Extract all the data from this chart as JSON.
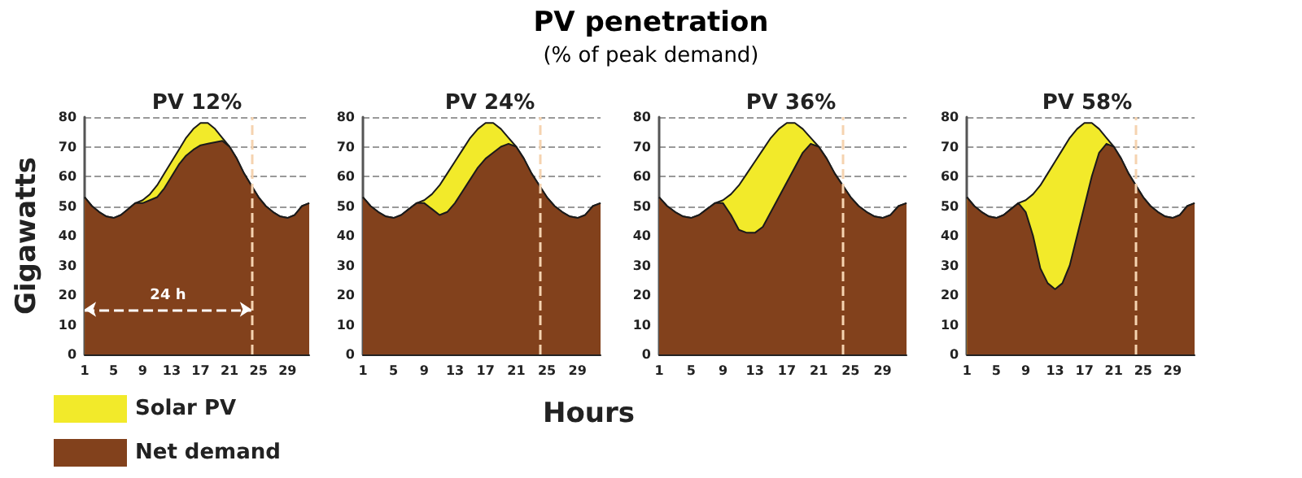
{
  "chart_data": [
    {
      "type": "other",
      "title": "PV penetration",
      "subtitle": "(% of peak demand)"
    },
    {
      "type": "area",
      "title": "PV 12%",
      "ylabel": "Gigawatts",
      "stacked": true,
      "legend": "bottom left",
      "grid": "y",
      "x": [
        1,
        2,
        3,
        4,
        5,
        6,
        7,
        8,
        9,
        10,
        11,
        12,
        13,
        14,
        15,
        16,
        17,
        18,
        19,
        20,
        21,
        22,
        23,
        24,
        25,
        26,
        27,
        28,
        29,
        30,
        31,
        32
      ],
      "xlim": [
        1,
        32
      ],
      "xticks": [
        1,
        5,
        9,
        13,
        17,
        21,
        25,
        29
      ],
      "ylim": [
        0,
        80
      ],
      "yticks": [
        0,
        10,
        20,
        30,
        40,
        50,
        60,
        70,
        80
      ],
      "series": [
        {
          "name": "Net demand",
          "color": "#82411c",
          "values": [
            53,
            50,
            48,
            46.5,
            46,
            47,
            49,
            51,
            51,
            52,
            53,
            56,
            60,
            64,
            67,
            69,
            70.5,
            71,
            71.5,
            72,
            70,
            66,
            61,
            57,
            53,
            50,
            48,
            46.5,
            46,
            47,
            50,
            51
          ]
        },
        {
          "name": "Solar PV",
          "color": "#f2ea2a",
          "values": [
            0,
            0,
            0,
            0,
            0,
            0,
            0,
            0,
            1,
            2,
            4,
            5,
            5,
            5,
            6,
            7,
            7.5,
            7,
            4.5,
            1,
            0,
            0,
            0,
            0,
            0,
            0,
            0,
            0,
            0,
            0,
            0,
            0
          ]
        }
      ],
      "ref_lines": [
        {
          "axis": "x",
          "value": 24,
          "color": "#f5d3b0",
          "line_style": "dashed"
        }
      ],
      "annotations": [
        "24 h"
      ]
    },
    {
      "type": "area",
      "title": "PV 24%",
      "xlabel": "Hours",
      "stacked": true,
      "grid": "y",
      "x": [
        1,
        2,
        3,
        4,
        5,
        6,
        7,
        8,
        9,
        10,
        11,
        12,
        13,
        14,
        15,
        16,
        17,
        18,
        19,
        20,
        21,
        22,
        23,
        24,
        25,
        26,
        27,
        28,
        29,
        30,
        31,
        32
      ],
      "xlim": [
        1,
        32
      ],
      "xticks": [
        1,
        5,
        9,
        13,
        17,
        21,
        25,
        29
      ],
      "ylim": [
        0,
        80
      ],
      "yticks": [
        0,
        10,
        20,
        30,
        40,
        50,
        60,
        70,
        80
      ],
      "series": [
        {
          "color": "#82411c",
          "values": [
            53,
            50,
            48,
            46.5,
            46,
            47,
            49,
            51,
            51,
            49,
            47,
            48,
            51,
            55,
            59,
            63,
            66,
            68,
            70,
            71,
            70,
            66,
            61,
            57,
            53,
            50,
            48,
            46.5,
            46,
            47,
            50,
            51
          ]
        },
        {
          "color": "#f2ea2a",
          "values": [
            0,
            0,
            0,
            0,
            0,
            0,
            0,
            0,
            1,
            5,
            10,
            13,
            14,
            14,
            14,
            13,
            12,
            10,
            6,
            2,
            0,
            0,
            0,
            0,
            0,
            0,
            0,
            0,
            0,
            0,
            0,
            0
          ]
        }
      ],
      "ref_lines": [
        {
          "axis": "x",
          "value": 24,
          "color": "#f5d3b0",
          "line_style": "dashed"
        }
      ]
    },
    {
      "type": "area",
      "title": "PV 36%",
      "stacked": true,
      "grid": "y",
      "x": [
        1,
        2,
        3,
        4,
        5,
        6,
        7,
        8,
        9,
        10,
        11,
        12,
        13,
        14,
        15,
        16,
        17,
        18,
        19,
        20,
        21,
        22,
        23,
        24,
        25,
        26,
        27,
        28,
        29,
        30,
        31,
        32
      ],
      "xlim": [
        1,
        32
      ],
      "xticks": [
        1,
        5,
        9,
        13,
        17,
        21,
        25,
        29
      ],
      "ylim": [
        0,
        80
      ],
      "yticks": [
        0,
        10,
        20,
        30,
        40,
        50,
        60,
        70,
        80
      ],
      "series": [
        {
          "color": "#82411c",
          "values": [
            53,
            50,
            48,
            46.5,
            46,
            47,
            49,
            51,
            51,
            47,
            42,
            41,
            41,
            43,
            48,
            53,
            58,
            63,
            68,
            71,
            70,
            66,
            61,
            57,
            53,
            50,
            48,
            46.5,
            46,
            47,
            50,
            51
          ]
        },
        {
          "color": "#f2ea2a",
          "values": [
            0,
            0,
            0,
            0,
            0,
            0,
            0,
            0,
            1,
            7,
            15,
            20,
            24,
            26,
            25,
            23,
            20,
            15,
            8,
            2,
            0,
            0,
            0,
            0,
            0,
            0,
            0,
            0,
            0,
            0,
            0,
            0
          ]
        }
      ],
      "ref_lines": [
        {
          "axis": "x",
          "value": 24,
          "color": "#f5d3b0",
          "line_style": "dashed"
        }
      ]
    },
    {
      "type": "area",
      "title": "PV 58%",
      "stacked": true,
      "grid": "y",
      "x": [
        1,
        2,
        3,
        4,
        5,
        6,
        7,
        8,
        9,
        10,
        11,
        12,
        13,
        14,
        15,
        16,
        17,
        18,
        19,
        20,
        21,
        22,
        23,
        24,
        25,
        26,
        27,
        28,
        29,
        30,
        31,
        32
      ],
      "xlim": [
        1,
        32
      ],
      "xticks": [
        1,
        5,
        9,
        13,
        17,
        21,
        25,
        29
      ],
      "ylim": [
        0,
        80
      ],
      "yticks": [
        0,
        10,
        20,
        30,
        40,
        50,
        60,
        70,
        80
      ],
      "series": [
        {
          "color": "#82411c",
          "values": [
            53,
            50,
            48,
            46.5,
            46,
            47,
            49,
            51,
            48,
            40,
            29,
            24,
            22,
            24,
            30,
            40,
            50,
            60,
            68,
            71,
            70,
            66,
            61,
            57,
            53,
            50,
            48,
            46.5,
            46,
            47,
            50,
            51
          ]
        },
        {
          "color": "#f2ea2a",
          "values": [
            0,
            0,
            0,
            0,
            0,
            0,
            0,
            0,
            4,
            14,
            28,
            37,
            43,
            45,
            43,
            36,
            28,
            18,
            8,
            2,
            0,
            0,
            0,
            0,
            0,
            0,
            0,
            0,
            0,
            0,
            0,
            0
          ]
        }
      ],
      "ref_lines": [
        {
          "axis": "x",
          "value": 24,
          "color": "#f5d3b0",
          "line_style": "dashed"
        }
      ]
    }
  ]
}
